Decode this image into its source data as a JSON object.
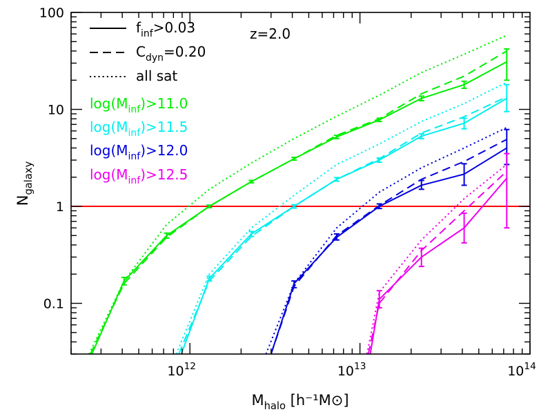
{
  "chart_data": {
    "type": "line",
    "title": "",
    "annotation": "z=2.0",
    "xlabel": {
      "main": "M",
      "sub": "halo",
      "rest": " [h⁻¹M⊙]"
    },
    "ylabel": {
      "main": "N",
      "sub": "galaxy"
    },
    "x_scale": "log",
    "y_scale": "log",
    "xlim": [
      200000000000.0,
      100000000000000.0
    ],
    "ylim": [
      0.03,
      100
    ],
    "x_ticks": [
      {
        "value": 1000000000000.0,
        "base": "10",
        "exp": "12"
      },
      {
        "value": 10000000000000.0,
        "base": "10",
        "exp": "13"
      },
      {
        "value": 100000000000000.0,
        "base": "10",
        "exp": "14"
      }
    ],
    "y_ticks": [
      {
        "value": 0.1,
        "label": "0.1"
      },
      {
        "value": 1,
        "label": "1"
      },
      {
        "value": 10,
        "label": "10"
      },
      {
        "value": 100,
        "label": "100"
      }
    ],
    "reference_line": {
      "y": 1,
      "color": "#ff0000"
    },
    "line_styles": [
      {
        "style": "solid",
        "main": "f",
        "sub": "inf",
        "rest": ">0.03"
      },
      {
        "style": "dashed",
        "main": "C",
        "sub": "dyn",
        "rest": "=0.20"
      },
      {
        "style": "dotted",
        "main": "all sat",
        "sub": "",
        "rest": ""
      }
    ],
    "series": [
      {
        "name": {
          "main": "log(M",
          "sub": "inf",
          "rest": ")>11.0"
        },
        "color": "#00ee00",
        "solid": [
          [
            265000000000.0,
            0.03
          ],
          [
            410000000000.0,
            0.17
          ],
          [
            730000000000.0,
            0.5
          ],
          [
            1300000000000.0,
            1.0
          ],
          [
            2300000000000.0,
            1.8
          ],
          [
            4100000000000.0,
            3.1
          ],
          [
            7300000000000.0,
            5.2
          ],
          [
            13000000000000.0,
            7.8
          ],
          [
            23000000000000.0,
            13
          ],
          [
            41000000000000.0,
            18
          ],
          [
            73000000000000.0,
            31
          ]
        ],
        "dashed": [
          [
            260000000000.0,
            0.03
          ],
          [
            410000000000.0,
            0.16
          ],
          [
            730000000000.0,
            0.48
          ],
          [
            1300000000000.0,
            1.0
          ],
          [
            2300000000000.0,
            1.8
          ],
          [
            4100000000000.0,
            3.1
          ],
          [
            7300000000000.0,
            5.4
          ],
          [
            13000000000000.0,
            8.0
          ],
          [
            23000000000000.0,
            14.5
          ],
          [
            41000000000000.0,
            22
          ],
          [
            73000000000000.0,
            40
          ]
        ],
        "dotted": [
          [
            255000000000.0,
            0.03
          ],
          [
            410000000000.0,
            0.17
          ],
          [
            730000000000.0,
            0.65
          ],
          [
            1300000000000.0,
            1.5
          ],
          [
            2300000000000.0,
            2.8
          ],
          [
            4100000000000.0,
            5.0
          ],
          [
            7300000000000.0,
            8.5
          ],
          [
            13000000000000.0,
            14
          ],
          [
            23000000000000.0,
            24
          ],
          [
            41000000000000.0,
            37
          ],
          [
            73000000000000.0,
            58
          ]
        ],
        "errors": [
          [
            410000000000.0,
            0.155,
            0.185
          ],
          [
            730000000000.0,
            0.47,
            0.53
          ],
          [
            1300000000000.0,
            0.97,
            1.03
          ],
          [
            2300000000000.0,
            1.75,
            1.85
          ],
          [
            4100000000000.0,
            3.0,
            3.2
          ],
          [
            7300000000000.0,
            5.0,
            5.4
          ],
          [
            13000000000000.0,
            7.5,
            8.1
          ],
          [
            23000000000000.0,
            12.3,
            13.7
          ],
          [
            41000000000000.0,
            16.5,
            19.5
          ],
          [
            73000000000000.0,
            20,
            42
          ]
        ]
      },
      {
        "name": {
          "main": "log(M",
          "sub": "inf",
          "rest": ")>11.5"
        },
        "color": "#00eeee",
        "solid": [
          [
            890000000000.0,
            0.03
          ],
          [
            1300000000000.0,
            0.18
          ],
          [
            2300000000000.0,
            0.52
          ],
          [
            4100000000000.0,
            1.0
          ],
          [
            7300000000000.0,
            1.9
          ],
          [
            13000000000000.0,
            3.0
          ],
          [
            23000000000000.0,
            5.3
          ],
          [
            41000000000000.0,
            7.2
          ],
          [
            73000000000000.0,
            13
          ]
        ],
        "dashed": [
          [
            860000000000.0,
            0.03
          ],
          [
            1300000000000.0,
            0.17
          ],
          [
            2300000000000.0,
            0.49
          ],
          [
            4100000000000.0,
            1.0
          ],
          [
            7300000000000.0,
            1.9
          ],
          [
            13000000000000.0,
            3.1
          ],
          [
            23000000000000.0,
            5.7
          ],
          [
            41000000000000.0,
            8.4
          ],
          [
            73000000000000.0,
            13.5
          ]
        ],
        "dotted": [
          [
            830000000000.0,
            0.03
          ],
          [
            1300000000000.0,
            0.2
          ],
          [
            2300000000000.0,
            0.6
          ],
          [
            4100000000000.0,
            1.3
          ],
          [
            7300000000000.0,
            2.7
          ],
          [
            13000000000000.0,
            4.4
          ],
          [
            23000000000000.0,
            7.5
          ],
          [
            41000000000000.0,
            11.5
          ],
          [
            73000000000000.0,
            19
          ]
        ],
        "errors": [
          [
            1300000000000.0,
            0.17,
            0.19
          ],
          [
            2300000000000.0,
            0.49,
            0.55
          ],
          [
            4100000000000.0,
            0.96,
            1.04
          ],
          [
            7300000000000.0,
            1.82,
            1.98
          ],
          [
            13000000000000.0,
            2.85,
            3.15
          ],
          [
            23000000000000.0,
            5.0,
            5.6
          ],
          [
            41000000000000.0,
            6.3,
            8.1
          ],
          [
            73000000000000.0,
            9.5,
            18
          ]
        ]
      },
      {
        "name": {
          "main": "log(M",
          "sub": "inf",
          "rest": ")>12.0"
        },
        "color": "#0000dd",
        "solid": [
          [
            3000000000000.0,
            0.03
          ],
          [
            4100000000000.0,
            0.16
          ],
          [
            7300000000000.0,
            0.48
          ],
          [
            13000000000000.0,
            1.0
          ],
          [
            23000000000000.0,
            1.65
          ],
          [
            41000000000000.0,
            2.15
          ],
          [
            73000000000000.0,
            4.0
          ]
        ],
        "dashed": [
          [
            3000000000000.0,
            0.03
          ],
          [
            4100000000000.0,
            0.15
          ],
          [
            7300000000000.0,
            0.5
          ],
          [
            13000000000000.0,
            1.02
          ],
          [
            23000000000000.0,
            1.9
          ],
          [
            41000000000000.0,
            2.9
          ],
          [
            73000000000000.0,
            4.9
          ]
        ],
        "dotted": [
          [
            2800000000000.0,
            0.03
          ],
          [
            4100000000000.0,
            0.16
          ],
          [
            7300000000000.0,
            0.6
          ],
          [
            13000000000000.0,
            1.4
          ],
          [
            23000000000000.0,
            2.5
          ],
          [
            41000000000000.0,
            4.0
          ],
          [
            73000000000000.0,
            6.5
          ]
        ],
        "errors": [
          [
            4100000000000.0,
            0.145,
            0.17
          ],
          [
            7300000000000.0,
            0.45,
            0.52
          ],
          [
            13000000000000.0,
            0.95,
            1.06
          ],
          [
            23000000000000.0,
            1.5,
            1.85
          ],
          [
            41000000000000.0,
            1.65,
            2.75
          ],
          [
            73000000000000.0,
            2.7,
            6.2
          ]
        ]
      },
      {
        "name": {
          "main": "log(M",
          "sub": "inf",
          "rest": ")>12.5"
        },
        "color": "#ee00ee",
        "solid": [
          [
            11500000000000.0,
            0.03
          ],
          [
            13000000000000.0,
            0.11
          ],
          [
            23000000000000.0,
            0.3
          ],
          [
            41000000000000.0,
            0.6
          ],
          [
            73000000000000.0,
            1.95
          ]
        ],
        "dashed": [
          [
            11200000000000.0,
            0.03
          ],
          [
            13000000000000.0,
            0.1
          ],
          [
            23000000000000.0,
            0.35
          ],
          [
            41000000000000.0,
            0.9
          ],
          [
            73000000000000.0,
            2.3
          ]
        ],
        "dotted": [
          [
            11000000000000.0,
            0.03
          ],
          [
            13000000000000.0,
            0.13
          ],
          [
            23000000000000.0,
            0.45
          ],
          [
            41000000000000.0,
            1.2
          ],
          [
            73000000000000.0,
            2.7
          ]
        ],
        "errors": [
          [
            13000000000000.0,
            0.09,
            0.135
          ],
          [
            23000000000000.0,
            0.24,
            0.37
          ],
          [
            41000000000000.0,
            0.42,
            0.85
          ],
          [
            73000000000000.0,
            0.6,
            3.5
          ]
        ]
      }
    ]
  }
}
